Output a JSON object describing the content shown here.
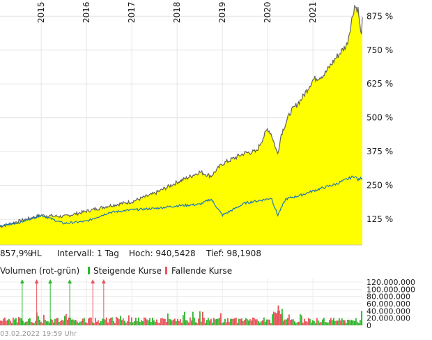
{
  "chart_data": [
    {
      "type": "area",
      "x_type": "year",
      "x_ticks": [
        "2015",
        "2016",
        "2017",
        "2018",
        "2019",
        "2020",
        "2021"
      ],
      "y_ticks": [
        "125 %",
        "250 %",
        "375 %",
        "500 %",
        "625 %",
        "750 %",
        "875 %"
      ],
      "y_tick_values": [
        125,
        250,
        375,
        500,
        625,
        750,
        875
      ],
      "ylim": [
        30,
        935
      ],
      "xlim": [
        2014.09,
        2022.09
      ],
      "grid": true,
      "series": [
        {
          "color": "#ffff00",
          "line_color": "#606060",
          "x": [
            2014.09,
            2014.5,
            2015.0,
            2015.5,
            2016.0,
            2016.5,
            2017.0,
            2017.5,
            2018.0,
            2018.25,
            2018.5,
            2018.75,
            2019.0,
            2019.25,
            2019.5,
            2019.75,
            2020.0,
            2020.08,
            2020.22,
            2020.3,
            2020.5,
            2020.75,
            2021.0,
            2021.25,
            2021.5,
            2021.75,
            2021.92,
            2021.96,
            2022.0,
            2022.06,
            2022.09
          ],
          "y": [
            98,
            118,
            140,
            135,
            155,
            175,
            190,
            220,
            262,
            280,
            300,
            285,
            330,
            350,
            370,
            375,
            460,
            440,
            365,
            440,
            520,
            570,
            640,
            660,
            720,
            770,
            915,
            905,
            900,
            800,
            857.9
          ]
        },
        {
          "color": "#1f77b4",
          "x": [
            2014.09,
            2014.5,
            2015.0,
            2015.5,
            2016.0,
            2016.5,
            2017.0,
            2017.5,
            2018.0,
            2018.5,
            2018.75,
            2019.0,
            2019.5,
            2020.0,
            2020.08,
            2020.22,
            2020.4,
            2020.75,
            2021.0,
            2021.5,
            2021.92,
            2022.0,
            2022.09
          ],
          "y": [
            100,
            112,
            140,
            110,
            118,
            150,
            160,
            165,
            175,
            180,
            200,
            140,
            185,
            200,
            205,
            140,
            200,
            215,
            230,
            255,
            285,
            270,
            280
          ]
        }
      ]
    },
    {
      "type": "bar",
      "x_type": "year",
      "ylim": [
        0,
        120000000
      ],
      "y_ticks": [
        "120.000.000",
        "100.000.000",
        "80.000.000",
        "60.000.000",
        "40.000.000",
        "20.000.000",
        "0"
      ],
      "y_tick_values": [
        120000000,
        100000000,
        80000000,
        60000000,
        40000000,
        20000000,
        0
      ],
      "series": [
        {
          "name": "Steigende Kurse",
          "color": "#2db82d"
        },
        {
          "name": "Fallende Kurse",
          "color": "#e8555c"
        }
      ],
      "notable_bars": [
        {
          "x": 2020.22,
          "value": 55000000,
          "color": "#e8555c"
        },
        {
          "x": 2020.16,
          "value": 35000000,
          "color": "#e8555c"
        },
        {
          "x": 2020.3,
          "value": 30000000,
          "color": "#2db82d"
        },
        {
          "x": 2022.06,
          "value": 40000000,
          "color": "#2db82d"
        }
      ],
      "arrows": [
        {
          "x": 2014.58,
          "color": "#2db82d"
        },
        {
          "x": 2014.9,
          "color": "#e8555c"
        },
        {
          "x": 2015.2,
          "color": "#2db82d"
        },
        {
          "x": 2015.63,
          "color": "#2db82d"
        },
        {
          "x": 2016.14,
          "color": "#e8555c"
        },
        {
          "x": 2016.38,
          "color": "#e8555c"
        }
      ]
    }
  ],
  "info": {
    "perf": "857,9%",
    "hl": "HL",
    "interval": "Intervall: 1 Tag",
    "high": "Hoch: 940,5428",
    "low": "Tief: 98,1908"
  },
  "volume_legend": {
    "title": "Volumen (rot-grün)",
    "up": "Steigende Kurse",
    "down": "Fallende Kurse"
  },
  "timestamp": "03.02.2022 19:59 Uhr"
}
